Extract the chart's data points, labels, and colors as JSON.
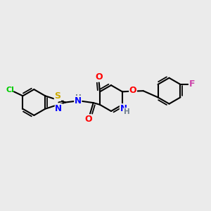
{
  "background_color": "#ebebeb",
  "atom_colors": {
    "C": "#000000",
    "N": "#0000ff",
    "O": "#ff0000",
    "S": "#ccaa00",
    "Cl": "#00cc00",
    "F": "#cc44aa",
    "H": "#708090"
  },
  "bond_color": "#000000",
  "bond_width": 1.5,
  "figsize": [
    3.0,
    3.0
  ],
  "dpi": 100
}
